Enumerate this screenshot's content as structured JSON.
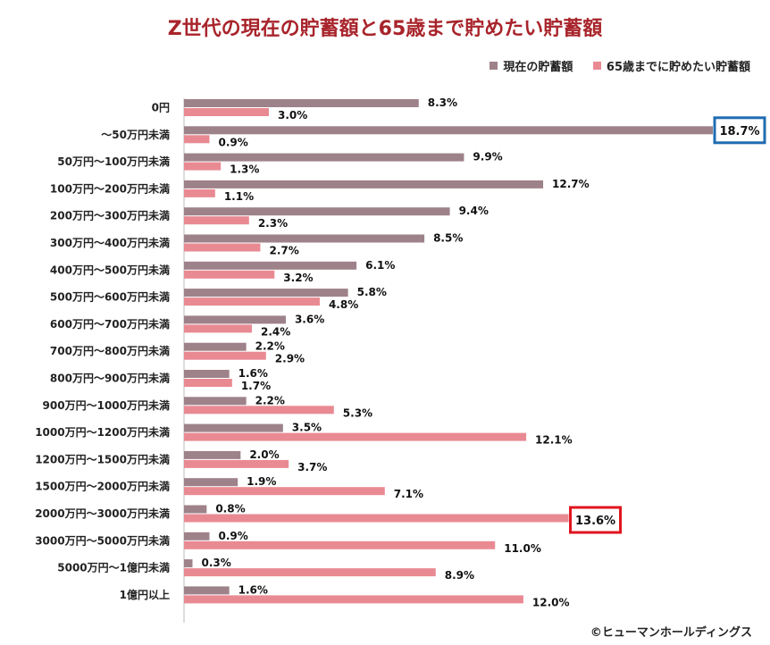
{
  "title": "Z世代の現在の貯蓄額と65歳まで貯めたい貯蓄額",
  "credit": "©ヒューマンホールディングス",
  "colors": {
    "current": "#9e8289",
    "target": "#e98a93",
    "highlight_blue": "#1f6cb0",
    "highlight_red": "#e0141e"
  },
  "chart_data": {
    "type": "bar",
    "orientation": "horizontal",
    "title": "Z世代の現在の貯蓄額と65歳まで貯めたい貯蓄額",
    "legend_position": "top-right",
    "grid": false,
    "xlim": [
      0,
      18.7
    ],
    "categories": [
      "0円",
      "～50万円未満",
      "50万円～100万円未満",
      "100万円～200万円未満",
      "200万円～300万円未満",
      "300万円～400万円未満",
      "400万円～500万円未満",
      "500万円～600万円未満",
      "600万円～700万円未満",
      "700万円～800万円未満",
      "800万円～900万円未満",
      "900万円～1000万円未満",
      "1000万円～1200万円未満",
      "1200万円～1500万円未満",
      "1500万円～2000万円未満",
      "2000万円～3000万円未満",
      "3000万円～5000万円未満",
      "5000万円～1億円未満",
      "1億円以上"
    ],
    "series": [
      {
        "name": "現在の貯蓄額",
        "values": [
          8.3,
          18.7,
          9.9,
          12.7,
          9.4,
          8.5,
          6.1,
          5.8,
          3.6,
          2.2,
          1.6,
          2.2,
          3.5,
          2.0,
          1.9,
          0.8,
          0.9,
          0.3,
          1.6
        ],
        "labels": [
          "8.3%",
          "18.7%",
          "9.9%",
          "12.7%",
          "9.4%",
          "8.5%",
          "6.1%",
          "5.8%",
          "3.6%",
          "2.2%",
          "1.6%",
          "2.2%",
          "3.5%",
          "2.0%",
          "1.9%",
          "0.8%",
          "0.9%",
          "0.3%",
          "1.6%"
        ]
      },
      {
        "name": "65歳までに貯めたい貯蓄額",
        "values": [
          3.0,
          0.9,
          1.3,
          1.1,
          2.3,
          2.7,
          3.2,
          4.8,
          2.4,
          2.9,
          1.7,
          5.3,
          12.1,
          3.7,
          7.1,
          13.6,
          11.0,
          8.9,
          12.0
        ],
        "labels": [
          "3.0%",
          "0.9%",
          "1.3%",
          "1.1%",
          "2.3%",
          "2.7%",
          "3.2%",
          "4.8%",
          "2.4%",
          "2.9%",
          "1.7%",
          "5.3%",
          "12.1%",
          "3.7%",
          "7.1%",
          "13.6%",
          "11.0%",
          "8.9%",
          "12.0%"
        ]
      }
    ],
    "highlights": [
      {
        "series": 0,
        "category": 1,
        "color": "blue"
      },
      {
        "series": 1,
        "category": 15,
        "color": "red"
      }
    ]
  }
}
